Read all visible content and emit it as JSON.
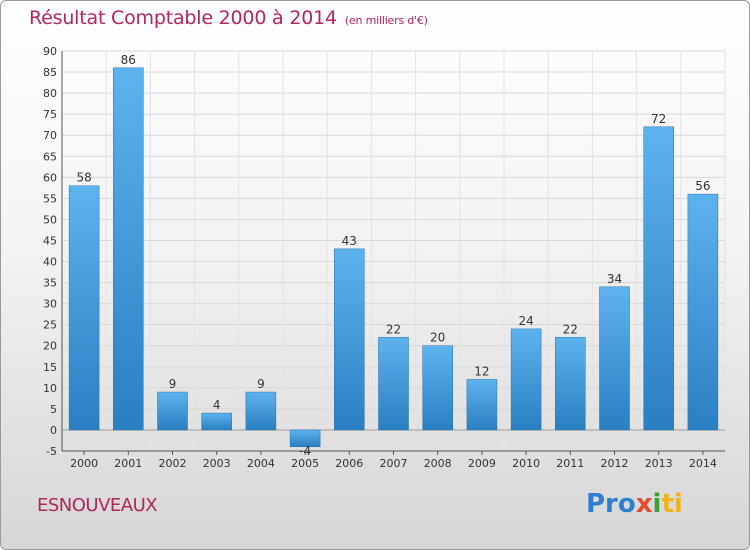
{
  "chart_data": {
    "type": "bar",
    "title": "Résultat Comptable 2000 à 2014",
    "subtitle": "(en milliers d'€)",
    "categories": [
      "2000",
      "2001",
      "2002",
      "2003",
      "2004",
      "2005",
      "2006",
      "2007",
      "2008",
      "2009",
      "2010",
      "2011",
      "2012",
      "2013",
      "2014"
    ],
    "values": [
      58,
      86,
      9,
      4,
      9,
      -4,
      43,
      22,
      20,
      12,
      24,
      22,
      34,
      72,
      56
    ],
    "ylim": [
      -5,
      90
    ],
    "yticks": [
      -5,
      0,
      5,
      10,
      15,
      20,
      25,
      30,
      35,
      40,
      45,
      50,
      55,
      60,
      65,
      70,
      75,
      80,
      85,
      90
    ],
    "grid": true,
    "bar_color": "#3a93d6",
    "xlabel": "",
    "ylabel": ""
  },
  "footer": {
    "town": "ESNOUVEAUX",
    "logo": {
      "p1": "Pro",
      "p2": "x",
      "p3": "i",
      "p4": "ti"
    }
  },
  "colors": {
    "title": "#b2265a",
    "bar_light": "#5db3ee",
    "bar_dark": "#2a7fc2"
  }
}
